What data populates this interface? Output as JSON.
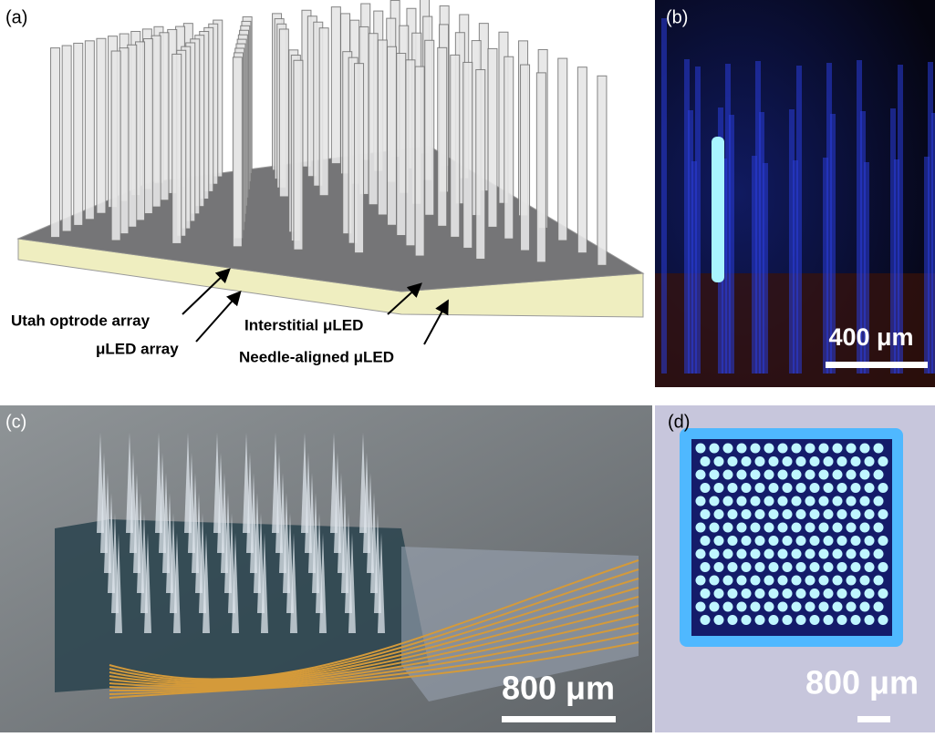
{
  "panels": [
    {
      "label": "(a)",
      "annotations": [
        "Utah optrode array",
        "μLED array",
        "Interstitial μLED",
        "Needle-aligned μLED"
      ]
    },
    {
      "label": "(b)",
      "scale_bar": "400 μm"
    },
    {
      "label": "(c)",
      "scale_bar": "800 μm"
    },
    {
      "label": "(d)",
      "scale_bar": "800 μm"
    }
  ]
}
